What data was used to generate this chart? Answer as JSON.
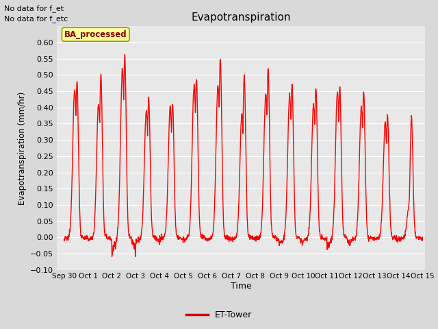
{
  "title": "Evapotranspiration",
  "ylabel": "Evapotranspiration (mm/hr)",
  "xlabel": "Time",
  "ylim": [
    -0.1,
    0.65
  ],
  "yticks": [
    -0.1,
    -0.05,
    0.0,
    0.05,
    0.1,
    0.15,
    0.2,
    0.25,
    0.3,
    0.35,
    0.4,
    0.45,
    0.5,
    0.55,
    0.6
  ],
  "line_color": "#ff0000",
  "line_width": 1.0,
  "bg_color": "#d9d9d9",
  "plot_bg_color": "#e8e8e8",
  "text_annotations": [
    "No data for f_et",
    "No data for f_etc"
  ],
  "legend_label": "ET-Tower",
  "legend_line_color": "#cc0000",
  "watermark_text": "BA_processed",
  "watermark_bg": "#ffff99",
  "watermark_border": "#999900",
  "x_tick_labels": [
    "Sep 30",
    "Oct 1",
    "Oct 2",
    "Oct 3",
    "Oct 4",
    "Oct 5",
    "Oct 6",
    "Oct 7",
    "Oct 8",
    "Oct 9",
    "Oct 10",
    "Oct 11",
    "Oct 12",
    "Oct 13",
    "Oct 14",
    "Oct 15"
  ],
  "n_days": 15
}
